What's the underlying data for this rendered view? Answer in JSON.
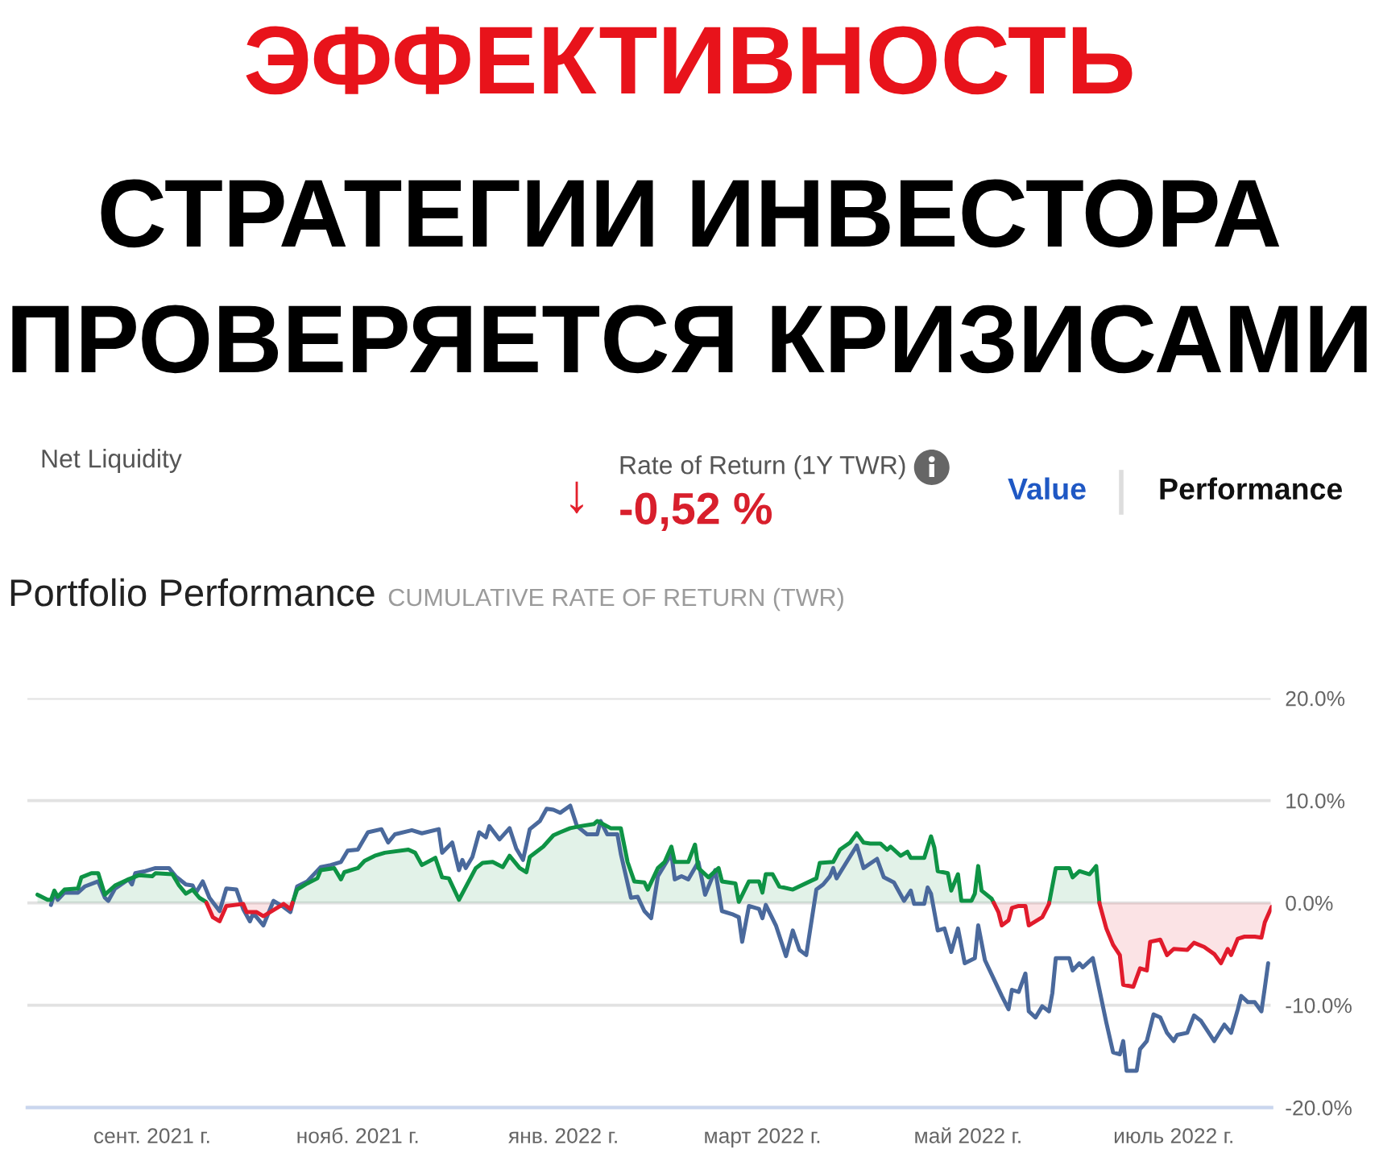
{
  "chart_data": {
    "type": "area",
    "title": "ЭФФЕКТИВНОСТЬ\nСТРАТЕГИИ ИНВЕСТОРА\nПРОВЕРЯЕТСЯ КРИЗИСАМИ",
    "annotations": [
      "Net Liquidity",
      "Rate of Return (1Y TWR)",
      "↓",
      "-0,52 %",
      "Value",
      "Performance",
      "Portfolio Performance",
      "CUMULATIVE RATE OF RETURN (TWR)"
    ],
    "x": [
      "2021-07-29",
      "2021-08-01",
      "2021-08-02",
      "2021-08-03",
      "2021-08-04",
      "2021-08-06",
      "2021-08-10",
      "2021-08-11",
      "2021-08-14",
      "2021-08-16",
      "2021-08-18",
      "2021-08-21",
      "2021-08-25",
      "2021-08-28",
      "2021-09-01",
      "2021-09-02",
      "2021-09-07",
      "2021-09-09",
      "2021-09-11",
      "2021-09-13",
      "2021-09-15",
      "2021-09-17",
      "2021-09-17T03:00",
      "2021-09-19",
      "2021-09-21",
      "2021-09-23",
      "2021-09-28",
      "2021-09-29",
      "2021-10-02",
      "2021-10-04",
      "2021-10-10",
      "2021-10-12",
      "2021-10-12T15:00",
      "2021-10-14",
      "2021-10-17",
      "2021-10-20",
      "2021-10-21",
      "2021-10-25",
      "2021-10-27",
      "2021-10-28",
      "2021-11-01",
      "2021-11-03",
      "2021-11-06",
      "2021-11-09",
      "2021-11-16",
      "2021-11-18",
      "2021-11-20",
      "2021-11-24",
      "2021-11-26",
      "2021-11-28",
      "2021-12-01",
      "2021-12-06",
      "2021-12-08",
      "2021-12-11",
      "2021-12-14",
      "2021-12-16",
      "2021-12-19",
      "2021-12-21",
      "2021-12-22",
      "2021-12-26",
      "2021-12-29",
      "2021-12-31",
      "2022-01-03",
      "2022-01-06",
      "2022-01-10",
      "2022-01-11",
      "2022-01-15",
      "2022-01-18",
      "2022-01-20",
      "2022-01-22",
      "2022-01-25",
      "2022-01-26",
      "2022-01-29",
      "2022-01-31",
      "2022-02-02",
      "2022-02-03",
      "2022-02-07",
      "2022-02-09",
      "2022-02-10",
      "2022-02-13",
      "2022-02-16",
      "2022-02-17",
      "2022-02-21",
      "2022-02-22",
      "2022-02-25",
      "2022-02-28",
      "2022-03-01",
      "2022-03-02",
      "2022-03-04",
      "2022-03-06",
      "2022-03-10",
      "2022-03-17",
      "2022-03-18",
      "2022-03-22",
      "2022-03-24",
      "2022-03-27",
      "2022-03-29",
      "2022-03-31",
      "2022-04-02",
      "2022-04-05",
      "2022-04-07",
      "2022-04-08",
      "2022-04-11",
      "2022-04-13",
      "2022-04-14",
      "2022-04-18",
      "2022-04-20",
      "2022-04-21",
      "2022-04-22",
      "2022-04-25",
      "2022-04-26",
      "2022-04-28",
      "2022-04-29",
      "2022-05-02",
      "2022-05-03",
      "2022-05-04",
      "2022-05-05",
      "2022-05-08",
      "2022-05-08T15:00",
      "2022-05-10",
      "2022-05-11",
      "2022-05-13",
      "2022-05-14",
      "2022-05-16",
      "2022-05-18",
      "2022-05-19",
      "2022-05-23",
      "2022-05-25",
      "2022-05-25T01:00",
      "2022-05-27",
      "2022-05-31",
      "2022-06-01",
      "2022-06-03",
      "2022-06-06",
      "2022-06-08",
      "2022-06-08T23:00",
      "2022-06-09",
      "2022-06-11",
      "2022-06-13",
      "2022-06-15",
      "2022-06-16",
      "2022-06-19",
      "2022-06-21",
      "2022-06-23",
      "2022-06-24",
      "2022-06-27",
      "2022-06-29",
      "2022-07-01",
      "2022-07-05",
      "2022-07-07",
      "2022-07-10",
      "2022-07-13",
      "2022-07-15",
      "2022-07-17",
      "2022-07-18",
      "2022-07-20",
      "2022-07-22",
      "2022-07-25",
      "2022-07-27",
      "2022-07-28",
      "2022-07-30"
    ],
    "series": [
      {
        "type": "line",
        "color": "#4a699c",
        "x": [
          "2021-08-02",
          "2021-08-03",
          "2021-08-04",
          "2021-08-06",
          "2021-08-10",
          "2021-08-12",
          "2021-08-16",
          "2021-08-18",
          "2021-08-19",
          "2021-08-21",
          "2021-08-25",
          "2021-08-26",
          "2021-08-27",
          "2021-08-30",
          "2021-09-02",
          "2021-09-06",
          "2021-09-08",
          "2021-09-11",
          "2021-09-13",
          "2021-09-14",
          "2021-09-16",
          "2021-09-18",
          "2021-09-21",
          "2021-09-23",
          "2021-09-26",
          "2021-09-28",
          "2021-09-30",
          "2021-10-01",
          "2021-10-04",
          "2021-10-07",
          "2021-10-10",
          "2021-10-12",
          "2021-10-14",
          "2021-10-17",
          "2021-10-21",
          "2021-10-24",
          "2021-10-27",
          "2021-10-29",
          "2021-11-01",
          "2021-11-04",
          "2021-11-08",
          "2021-11-10",
          "2021-11-12",
          "2021-11-17",
          "2021-11-20",
          "2021-11-25",
          "2021-11-26",
          "2021-11-29",
          "2021-12-01",
          "2021-12-02",
          "2021-12-03",
          "2021-12-05",
          "2021-12-07",
          "2021-12-09",
          "2021-12-10",
          "2021-12-13",
          "2021-12-16",
          "2021-12-18",
          "2021-12-20",
          "2021-12-22",
          "2021-12-25",
          "2021-12-27",
          "2021-12-29",
          "2021-12-31",
          "2022-01-03",
          "2022-01-05",
          "2022-01-08",
          "2022-01-11",
          "2022-01-12",
          "2022-01-14",
          "2022-01-17",
          "2022-01-18",
          "2022-01-21",
          "2022-01-23",
          "2022-01-25",
          "2022-01-27",
          "2022-01-29",
          "2022-02-02",
          "2022-02-03",
          "2022-02-05",
          "2022-02-07",
          "2022-02-10",
          "2022-02-12",
          "2022-02-15",
          "2022-02-17",
          "2022-02-20",
          "2022-02-22",
          "2022-02-23",
          "2022-02-25",
          "2022-02-28",
          "2022-03-01",
          "2022-03-02",
          "2022-03-05",
          "2022-03-08",
          "2022-03-10",
          "2022-03-12",
          "2022-03-14",
          "2022-03-17",
          "2022-03-19",
          "2022-03-21",
          "2022-03-22",
          "2022-03-23",
          "2022-03-26",
          "2022-03-29",
          "2022-03-31",
          "2022-04-04",
          "2022-04-06",
          "2022-04-09",
          "2022-04-12",
          "2022-04-14",
          "2022-04-15",
          "2022-04-18",
          "2022-04-19",
          "2022-04-20",
          "2022-04-22",
          "2022-04-24",
          "2022-04-26",
          "2022-04-28",
          "2022-04-30",
          "2022-05-03",
          "2022-05-04",
          "2022-05-06",
          "2022-05-09",
          "2022-05-11",
          "2022-05-13",
          "2022-05-14",
          "2022-05-16",
          "2022-05-18",
          "2022-05-19",
          "2022-05-21",
          "2022-05-23",
          "2022-05-25",
          "2022-05-26",
          "2022-05-27",
          "2022-05-31",
          "2022-06-01",
          "2022-06-03",
          "2022-06-04",
          "2022-06-07",
          "2022-06-11",
          "2022-06-13",
          "2022-06-15",
          "2022-06-16",
          "2022-06-17",
          "2022-06-20",
          "2022-06-21",
          "2022-06-23",
          "2022-06-25",
          "2022-06-27",
          "2022-06-29",
          "2022-07-01",
          "2022-07-02",
          "2022-07-05",
          "2022-07-07",
          "2022-07-09",
          "2022-07-13",
          "2022-07-16",
          "2022-07-18",
          "2022-07-20",
          "2022-07-21",
          "2022-07-23",
          "2022-07-25",
          "2022-07-27",
          "2022-07-28",
          "2022-07-29"
        ],
        "values": [
          -0.2,
          0.9,
          0.3,
          1.0,
          1.0,
          1.6,
          2.1,
          0.5,
          0.2,
          1.4,
          2.3,
          1.8,
          2.9,
          3.1,
          3.4,
          3.4,
          2.6,
          1.8,
          1.7,
          1.0,
          2.1,
          0.5,
          -0.8,
          1.4,
          1.3,
          -0.6,
          -1.8,
          -1.0,
          -2.2,
          0.2,
          -0.4,
          -0.9,
          1.6,
          2.1,
          3.5,
          3.7,
          4.0,
          5.1,
          5.2,
          6.9,
          7.2,
          5.9,
          6.7,
          7.1,
          6.8,
          7.2,
          4.9,
          5.9,
          3.2,
          4.2,
          3.4,
          4.5,
          6.9,
          6.4,
          7.5,
          6.2,
          7.3,
          5.3,
          4.2,
          7.2,
          8.0,
          9.2,
          9.1,
          8.8,
          9.5,
          7.5,
          6.7,
          6.7,
          8.0,
          6.7,
          6.7,
          4.8,
          0.5,
          0.6,
          -0.8,
          -1.5,
          2.6,
          4.8,
          2.3,
          2.6,
          2.3,
          4.0,
          0.8,
          3.2,
          -0.8,
          -1.1,
          -1.4,
          -3.8,
          -0.3,
          -0.6,
          -1.5,
          -0.2,
          -2.2,
          -5.2,
          -2.7,
          -4.6,
          -5.1,
          1.3,
          1.8,
          2.6,
          3.4,
          2.4,
          4.0,
          5.6,
          3.4,
          4.3,
          2.5,
          2.0,
          0.2,
          1.2,
          -0.1,
          -0.1,
          1.5,
          0.9,
          -2.7,
          -2.5,
          -4.8,
          -2.5,
          -5.9,
          -5.4,
          -2.2,
          -5.6,
          -7.7,
          -9.1,
          -10.4,
          -8.5,
          -8.7,
          -6.9,
          -10.6,
          -11.2,
          -10.1,
          -10.6,
          -8.8,
          -5.4,
          -5.4,
          -6.6,
          -5.9,
          -6.3,
          -5.4,
          -11.7,
          -14.6,
          -14.8,
          -13.5,
          -16.4,
          -16.4,
          -14.3,
          -13.5,
          -10.9,
          -11.2,
          -12.7,
          -13.5,
          -12.9,
          -12.7,
          -11.0,
          -11.5,
          -13.5,
          -11.9,
          -12.7,
          -10.4,
          -9.1,
          -9.7,
          -9.7,
          -10.6,
          -8.3,
          -5.9
        ]
      },
      {
        "color": "#0e9345",
        "values": [
          0.8,
          0.3,
          0.3,
          1.2,
          0.6,
          1.3,
          1.4,
          2.5,
          2.9,
          2.9,
          0.8,
          1.7,
          2.3,
          2.7,
          2.6,
          2.9,
          2.8,
          1.7,
          0.9,
          1.3,
          0.5,
          0.1,
          0,
          null,
          null,
          null,
          null,
          null,
          null,
          null,
          null,
          null,
          0,
          1.3,
          1.9,
          2.4,
          3.2,
          3.4,
          2.3,
          3.0,
          3.4,
          4.1,
          4.6,
          4.9,
          5.2,
          4.9,
          3.7,
          4.4,
          2.5,
          2.4,
          0.3,
          3.4,
          3.9,
          4.0,
          3.5,
          4.6,
          3.4,
          3.0,
          4.5,
          5.5,
          6.6,
          6.9,
          7.3,
          7.5,
          7.7,
          8.0,
          7.3,
          7.3,
          4.0,
          2.1,
          2.0,
          1.3,
          3.4,
          4.0,
          5.5,
          4.0,
          4.0,
          5.7,
          3.4,
          2.5,
          3.4,
          2.1,
          1.9,
          0.1,
          2.1,
          2.1,
          1.0,
          2.8,
          2.8,
          1.6,
          1.3,
          2.4,
          3.9,
          4.0,
          5.2,
          5.9,
          6.8,
          5.9,
          5.8,
          5.8,
          5.2,
          5.5,
          4.6,
          5.0,
          4.4,
          4.4,
          6.5,
          5.4,
          3.1,
          2.9,
          1.2,
          2.8,
          0.2,
          0.2,
          0.9,
          3.6,
          1.2,
          0.4,
          0,
          null,
          null,
          null,
          null,
          null,
          null,
          null,
          null,
          null,
          0,
          3.4,
          3.4,
          2.5,
          3.1,
          2.8,
          3.6,
          0,
          null,
          null,
          null,
          null,
          null,
          null,
          null,
          null,
          null,
          null,
          null,
          null,
          null,
          null,
          null,
          null,
          null,
          null,
          null,
          null,
          null,
          null,
          null,
          null,
          null
        ]
      },
      {
        "color": "#e11b2c",
        "values": [
          null,
          null,
          null,
          null,
          null,
          null,
          null,
          null,
          null,
          null,
          null,
          null,
          null,
          null,
          null,
          null,
          null,
          null,
          null,
          null,
          null,
          null,
          0,
          -1.4,
          -1.8,
          -0.3,
          -0.1,
          -0.9,
          -0.9,
          -1.3,
          -0.1,
          -0.6,
          0,
          null,
          null,
          null,
          null,
          null,
          null,
          null,
          null,
          null,
          null,
          null,
          null,
          null,
          null,
          null,
          null,
          null,
          null,
          null,
          null,
          null,
          null,
          null,
          null,
          null,
          null,
          null,
          null,
          null,
          null,
          null,
          null,
          null,
          null,
          null,
          null,
          null,
          null,
          null,
          null,
          null,
          null,
          null,
          null,
          null,
          null,
          null,
          null,
          null,
          null,
          null,
          null,
          null,
          null,
          null,
          null,
          null,
          null,
          null,
          null,
          null,
          null,
          null,
          null,
          null,
          null,
          null,
          null,
          null,
          null,
          null,
          null,
          null,
          null,
          null,
          null,
          null,
          null,
          null,
          null,
          null,
          null,
          null,
          null,
          null,
          0,
          -0.9,
          -2.2,
          -1.7,
          -0.5,
          -0.3,
          -0.3,
          -2.2,
          -1.4,
          -0.1,
          0,
          null,
          null,
          null,
          null,
          null,
          null,
          0,
          -0.1,
          -2.5,
          -4.1,
          -5.1,
          -8.0,
          -8.2,
          -6.4,
          -6.6,
          -3.8,
          -3.6,
          -5.1,
          -4.5,
          -4.6,
          -3.9,
          -4.3,
          -5.0,
          -5.9,
          -4.5,
          -5.1,
          -3.5,
          -3.3,
          -3.3,
          -3.4,
          -1.9,
          -0.4
        ]
      }
    ],
    "xlim": [
      "2021-07-26",
      "2022-07-30"
    ],
    "xticks": [
      {
        "value": "2021-09-01",
        "label": "сент. 2021 г."
      },
      {
        "value": "2021-11-01",
        "label": "нояб. 2021 г."
      },
      {
        "value": "2022-01-01",
        "label": "янв. 2022 г."
      },
      {
        "value": "2022-03-01",
        "label": "март 2022 г."
      },
      {
        "value": "2022-05-01",
        "label": "май 2022 г."
      },
      {
        "value": "2022-07-01",
        "label": "июль 2022 г."
      }
    ],
    "ylim": [
      -20,
      20
    ],
    "yticks": [
      {
        "value": -20,
        "label": "-20.0%"
      },
      {
        "value": -10,
        "label": "-10.0%"
      },
      {
        "value": 0,
        "label": "0.0%"
      },
      {
        "value": 10,
        "label": "10.0%"
      },
      {
        "value": 20,
        "label": "20.0%"
      }
    ],
    "grid": "y"
  }
}
